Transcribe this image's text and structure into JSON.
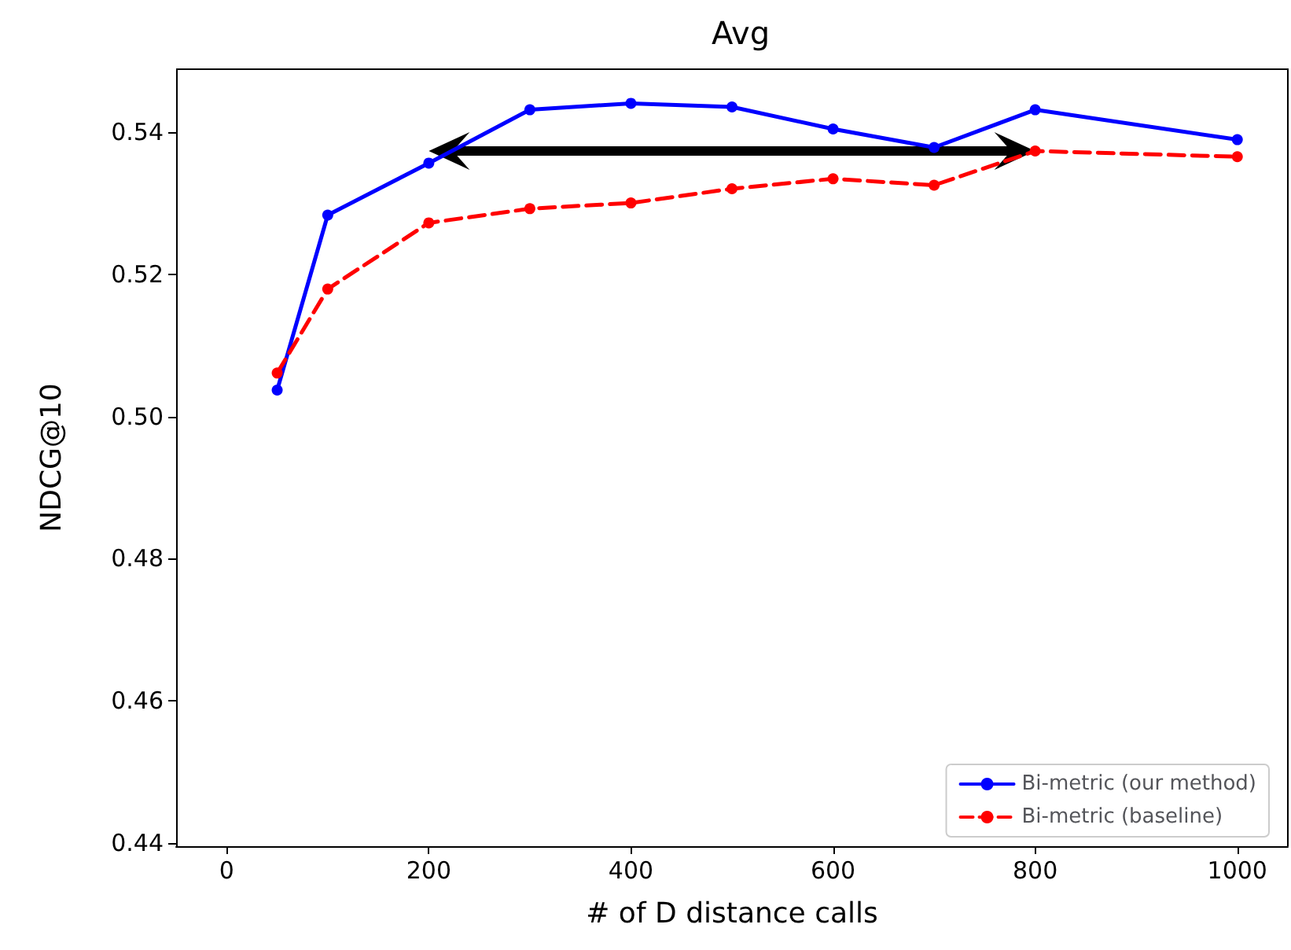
{
  "chart_data": {
    "type": "line",
    "title": "Avg",
    "xlabel": "# of D distance calls",
    "ylabel": "NDCG@10",
    "x": [
      50,
      100,
      200,
      300,
      400,
      500,
      600,
      700,
      800,
      1000
    ],
    "series": [
      {
        "name": "Bi-metric (our method)",
        "color": "#0000ff",
        "values": [
          0.5037,
          0.5283,
          0.5356,
          0.5431,
          0.544,
          0.5435,
          0.5404,
          0.5378,
          0.5431,
          0.5389
        ],
        "line_style": "solid"
      },
      {
        "name": "Bi-metric (baseline)",
        "color": "#ff0000",
        "values": [
          0.5061,
          0.5179,
          0.5272,
          0.5292,
          0.53,
          0.532,
          0.5334,
          0.5325,
          0.5373,
          0.5365
        ],
        "line_style": "dashed"
      }
    ],
    "xlim": [
      -50,
      1050
    ],
    "xticks": [
      0,
      200,
      400,
      600,
      800,
      1000
    ],
    "ylim": [
      0.4396,
      0.5488
    ],
    "yticks": [
      0.44,
      0.46,
      0.48,
      {
        "value": 0.5,
        "label": "0.50"
      },
      0.52,
      0.54
    ],
    "grid": false,
    "legend": "bottom right",
    "marker": "circle"
  }
}
